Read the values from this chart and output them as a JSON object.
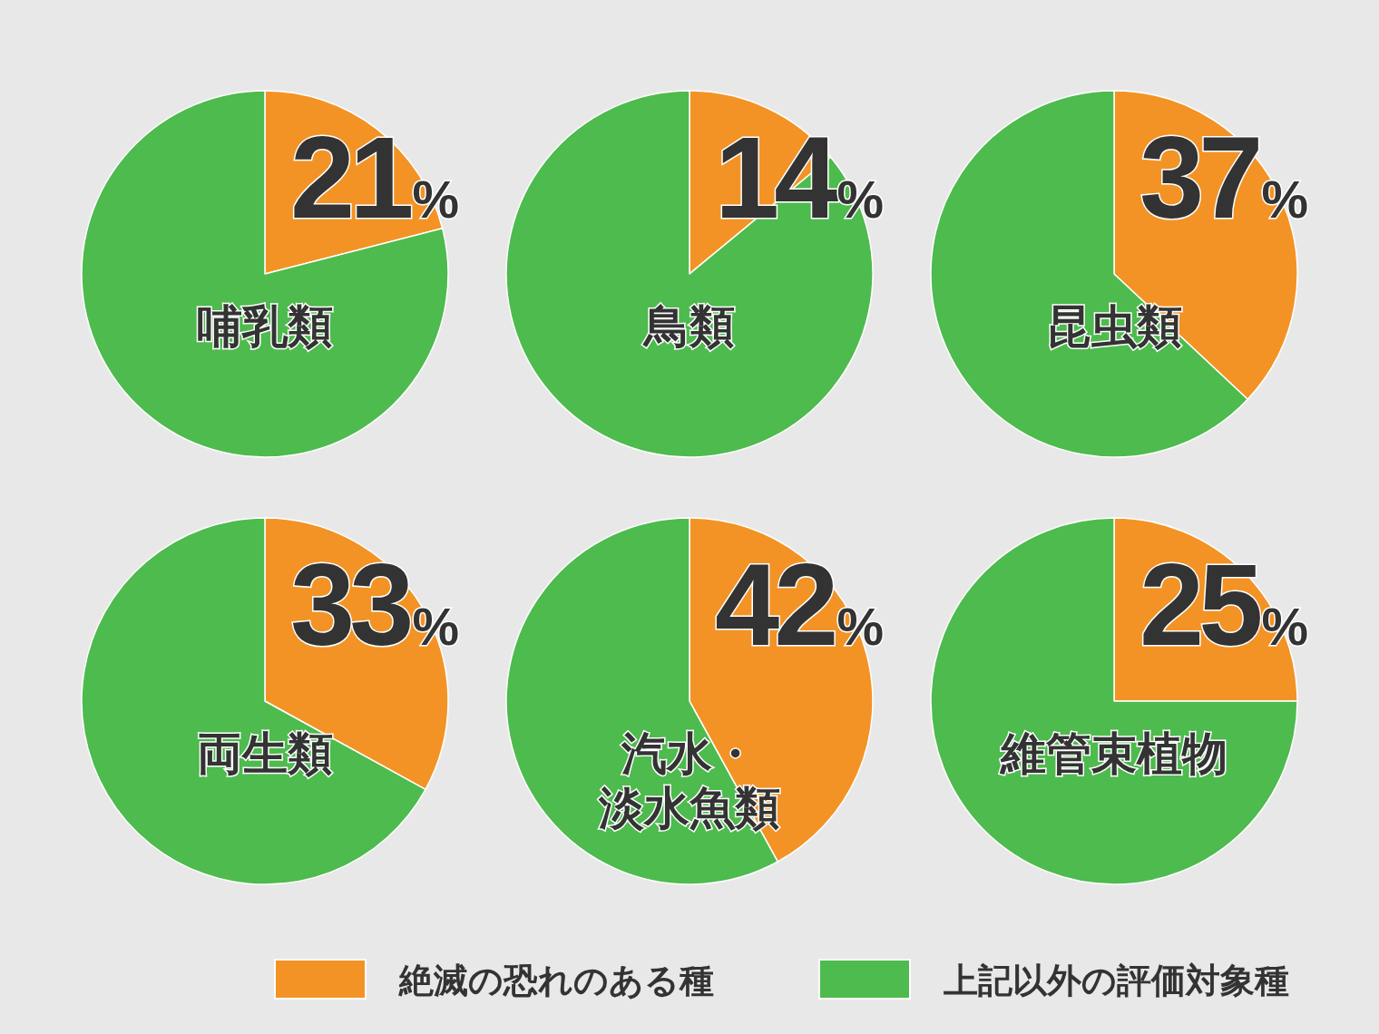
{
  "chart_data": [
    {
      "type": "pie",
      "title": "哺乳類",
      "categories": [
        "絶滅の恐れのある種",
        "上記以外の評価対象種"
      ],
      "values": [
        21,
        79
      ],
      "colors": [
        "#f39325",
        "#4dbb4d"
      ],
      "value_labels": [
        "21%",
        null
      ],
      "legend": "bottom"
    },
    {
      "type": "pie",
      "title": "鳥類",
      "values": [
        14,
        86
      ],
      "colors": [
        "#f39325",
        "#4dbb4d"
      ],
      "value_labels": [
        "14%",
        null
      ]
    },
    {
      "type": "pie",
      "title": "昆虫類",
      "values": [
        37,
        63
      ],
      "colors": [
        "#f39325",
        "#4dbb4d"
      ],
      "value_labels": [
        "37%",
        null
      ]
    },
    {
      "type": "pie",
      "title": "両生類",
      "values": [
        33,
        67
      ],
      "colors": [
        "#f39325",
        "#4dbb4d"
      ],
      "value_labels": [
        "33%",
        null
      ]
    },
    {
      "type": "pie",
      "title": "汽水・淡水魚類",
      "values": [
        42,
        58
      ],
      "colors": [
        "#f39325",
        "#4dbb4d"
      ],
      "value_labels": [
        "42%",
        null
      ]
    },
    {
      "type": "pie",
      "title": "維管束植物",
      "values": [
        25,
        75
      ],
      "colors": [
        "#f39325",
        "#4dbb4d"
      ],
      "value_labels": [
        "25%",
        null
      ]
    }
  ]
}
